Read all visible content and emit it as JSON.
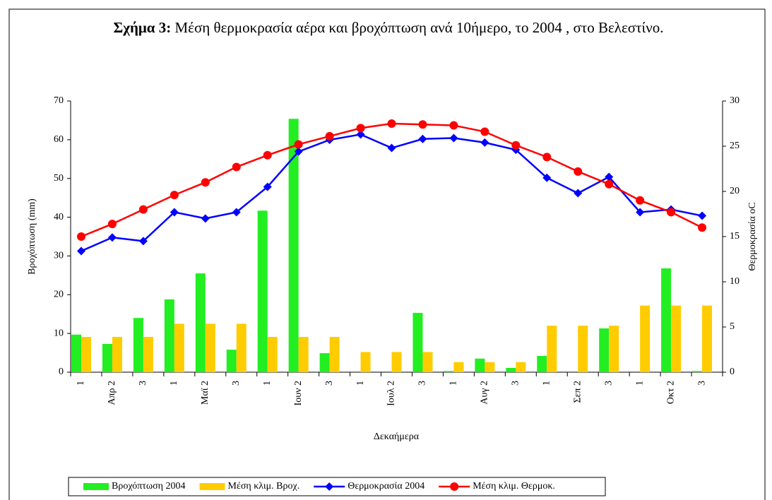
{
  "chart_data": {
    "type": "bar",
    "title": {
      "label": "Σχήμα 3:",
      "text": "Μέση θερμοκρασία αέρα και βροχόπτωση ανά 10ήμερο, το 2004 , στο Βελεστίνο."
    },
    "x_label": "Δεκαήμερα",
    "y_label": "Βροχόπτωση (mm)",
    "y2_label": "Θερμοκρασία oC",
    "categories": [
      "1",
      "Απρ 2",
      "3",
      "1",
      "Μαϊ 2",
      "3",
      "1",
      "Ιουν 2",
      "3",
      "1",
      "Ιουλ 2",
      "3",
      "1",
      "Αυγ 2",
      "3",
      "1",
      "Σεπ 2",
      "3",
      "1",
      "Οκτ 2",
      "3"
    ],
    "ylim": [
      0,
      70
    ],
    "yticks": [
      0,
      10,
      20,
      30,
      40,
      50,
      60,
      70
    ],
    "y2lim": [
      0,
      30
    ],
    "y2ticks": [
      0,
      5,
      10,
      15,
      20,
      25,
      30
    ],
    "legend": "bottom",
    "series": [
      {
        "name": "Βροχόπτωση 2004",
        "type": "bar",
        "color": "#22ee22",
        "values": [
          9.7,
          7.3,
          14.0,
          18.8,
          25.5,
          5.8,
          41.7,
          65.4,
          4.9,
          0,
          0,
          15.3,
          0.3,
          3.5,
          1.1,
          4.2,
          0,
          11.3,
          0,
          26.8,
          0.3
        ]
      },
      {
        "name": "Μέση κλιμ. Βροχ.",
        "type": "bar",
        "color": "#ffcc00",
        "values": [
          9.1,
          9.1,
          9.1,
          12.5,
          12.5,
          12.5,
          9.1,
          9.1,
          9.1,
          5.2,
          5.2,
          5.2,
          2.6,
          2.6,
          2.6,
          12.0,
          12.0,
          12.0,
          17.2,
          17.2,
          17.2
        ]
      },
      {
        "name": "Θερμοκρασία 2004",
        "type": "line",
        "axis": "y2",
        "marker": "diamond",
        "color": "#0000ff",
        "values": [
          13.4,
          14.9,
          14.5,
          17.7,
          17.0,
          17.7,
          20.5,
          24.4,
          25.7,
          26.3,
          24.8,
          25.8,
          25.9,
          25.4,
          24.6,
          21.5,
          19.8,
          21.6,
          17.7,
          18.0,
          17.3
        ]
      },
      {
        "name": "Μέση κλιμ. Θερμοκ.",
        "type": "line",
        "axis": "y2",
        "marker": "circle",
        "color": "#ff0000",
        "values": [
          15.0,
          16.4,
          18.0,
          19.6,
          21.0,
          22.7,
          24.0,
          25.2,
          26.1,
          27.0,
          27.5,
          27.4,
          27.3,
          26.6,
          25.1,
          23.8,
          22.2,
          20.8,
          19.0,
          17.7,
          16.0
        ]
      }
    ]
  }
}
